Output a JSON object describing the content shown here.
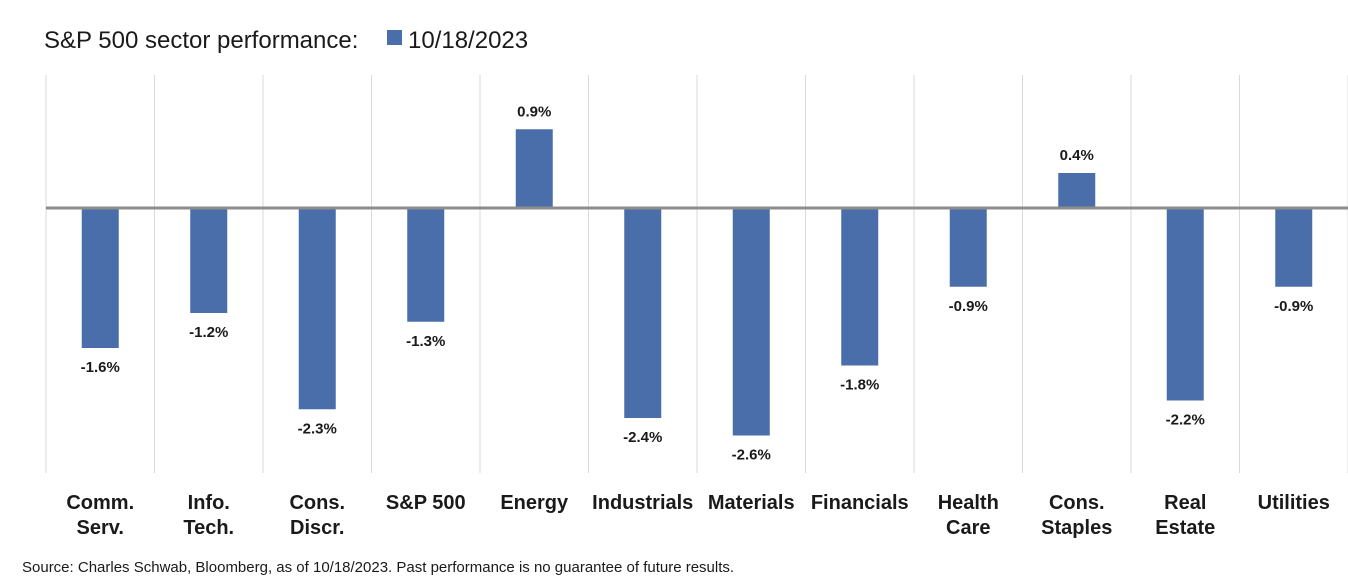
{
  "chart_data": {
    "type": "bar",
    "title": "S&P 500 sector performance:",
    "legend_position": "top",
    "categories": [
      [
        "Comm.",
        "Serv."
      ],
      [
        "Info.",
        "Tech."
      ],
      [
        "Cons.",
        "Discr."
      ],
      [
        "S&P 500"
      ],
      [
        "Energy"
      ],
      [
        "Industrials"
      ],
      [
        "Materials"
      ],
      [
        "Financials"
      ],
      [
        "Health",
        "Care"
      ],
      [
        "Cons.",
        "Staples"
      ],
      [
        "Real",
        "Estate"
      ],
      [
        "Utilities"
      ]
    ],
    "series": [
      {
        "name": "10/18/2023",
        "color": "#4a6ea9",
        "values": [
          -1.6,
          -1.2,
          -2.3,
          -1.3,
          0.9,
          -2.4,
          -2.6,
          -1.8,
          -0.9,
          0.4,
          -2.2,
          -0.9
        ],
        "labels": [
          "-1.6%",
          "-1.2%",
          "-2.3%",
          "-1.3%",
          "0.9%",
          "-2.4%",
          "-2.6%",
          "-1.8%",
          "-0.9%",
          "0.4%",
          "-2.2%",
          "-0.9%"
        ]
      }
    ],
    "ylim": [
      -2.95,
      1.35
    ],
    "grid": "vertical",
    "source": "Source: Charles Schwab, Bloomberg, as of 10/18/2023.  Past performance is no guarantee of future results."
  }
}
